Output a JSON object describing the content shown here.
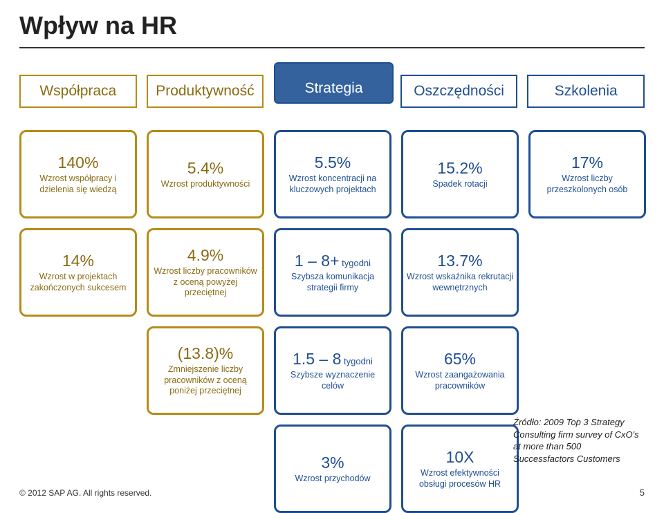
{
  "title": "Wpływ na HR",
  "colors": {
    "gold": "#b58b18",
    "gold_dark": "#8a6b12",
    "blue_box": "#34629c",
    "blue_text": "#2b5797",
    "blue_border": "#1f4e92",
    "blue_text2": "#1f4e92",
    "white": "#ffffff",
    "text": "#222222"
  },
  "categories": [
    {
      "label": "Współpraca",
      "fill": "#ffffff",
      "border": "#b58b18",
      "text_color": "#8a6b12"
    },
    {
      "label": "Produktywność",
      "fill": "#ffffff",
      "border": "#b58b18",
      "text_color": "#8a6b12"
    },
    {
      "label": "Strategia",
      "fill": "#34629c",
      "border": "#1f4e92",
      "text_color": "#ffffff",
      "raised": true
    },
    {
      "label": "Oszczędności",
      "fill": "#ffffff",
      "border": "#1f4e92",
      "text_color": "#1f4e92"
    },
    {
      "label": "Szkolenia",
      "fill": "#ffffff",
      "border": "#1f4e92",
      "text_color": "#1f4e92"
    }
  ],
  "cards": [
    {
      "col": 1,
      "row": 1,
      "color": "#b58b18",
      "tcolor": "#8a6b12",
      "value": "140%",
      "label": "Wzrost współpracy i dzielenia się wiedzą"
    },
    {
      "col": 2,
      "row": 1,
      "color": "#b58b18",
      "tcolor": "#8a6b12",
      "value": "5.4%",
      "label": "Wzrost produktywności"
    },
    {
      "col": 3,
      "row": 1,
      "color": "#1f4e92",
      "tcolor": "#1f4e92",
      "value": "5.5%",
      "label": "Wzrost koncentracji na kluczowych projektach"
    },
    {
      "col": 4,
      "row": 1,
      "color": "#1f4e92",
      "tcolor": "#1f4e92",
      "value": "15.2%",
      "label": "Spadek rotacji"
    },
    {
      "col": 5,
      "row": 1,
      "color": "#1f4e92",
      "tcolor": "#1f4e92",
      "value": "17%",
      "label": "Wzrost liczby przeszkolonych osób"
    },
    {
      "col": 1,
      "row": 2,
      "color": "#b58b18",
      "tcolor": "#8a6b12",
      "value": "14%",
      "label": "Wzrost w projektach zakończonych sukcesem"
    },
    {
      "col": 2,
      "row": 2,
      "color": "#b58b18",
      "tcolor": "#8a6b12",
      "value": "4.9%",
      "label": "Wzrost liczby pracowników z oceną powyżej przeciętnej"
    },
    {
      "col": 3,
      "row": 2,
      "color": "#1f4e92",
      "tcolor": "#1f4e92",
      "value": "1 – 8+",
      "unit": "tygodni",
      "label": "Szybsza komunikacja strategii firmy"
    },
    {
      "col": 4,
      "row": 2,
      "color": "#1f4e92",
      "tcolor": "#1f4e92",
      "value": "13.7%",
      "label": "Wzrost wskaźnika rekrutacji wewnętrznych"
    },
    {
      "col": 2,
      "row": 3,
      "color": "#b58b18",
      "tcolor": "#8a6b12",
      "value": "(13.8)%",
      "label": "Zmniejszenie liczby pracowników z oceną poniżej przeciętnej"
    },
    {
      "col": 3,
      "row": 3,
      "color": "#1f4e92",
      "tcolor": "#1f4e92",
      "value": "1.5 – 8",
      "unit": "tygodni",
      "label": "Szybsze wyznaczenie celów"
    },
    {
      "col": 4,
      "row": 3,
      "color": "#1f4e92",
      "tcolor": "#1f4e92",
      "value": "65%",
      "label": "Wzrost zaangażowania pracowników"
    },
    {
      "col": 3,
      "row": 4,
      "color": "#1f4e92",
      "tcolor": "#1f4e92",
      "value": "3%",
      "label": "Wzrost przychodów"
    },
    {
      "col": 4,
      "row": 4,
      "color": "#1f4e92",
      "tcolor": "#1f4e92",
      "value": "10X",
      "label": "Wzrost efektywności obsługi procesów HR"
    }
  ],
  "footer": "© 2012 SAP AG. All rights reserved.",
  "source": "Źródło:  2009 Top 3 Strategy Consulting firm survey of CxO's at more than 500 Successfactors Customers",
  "page": "5"
}
